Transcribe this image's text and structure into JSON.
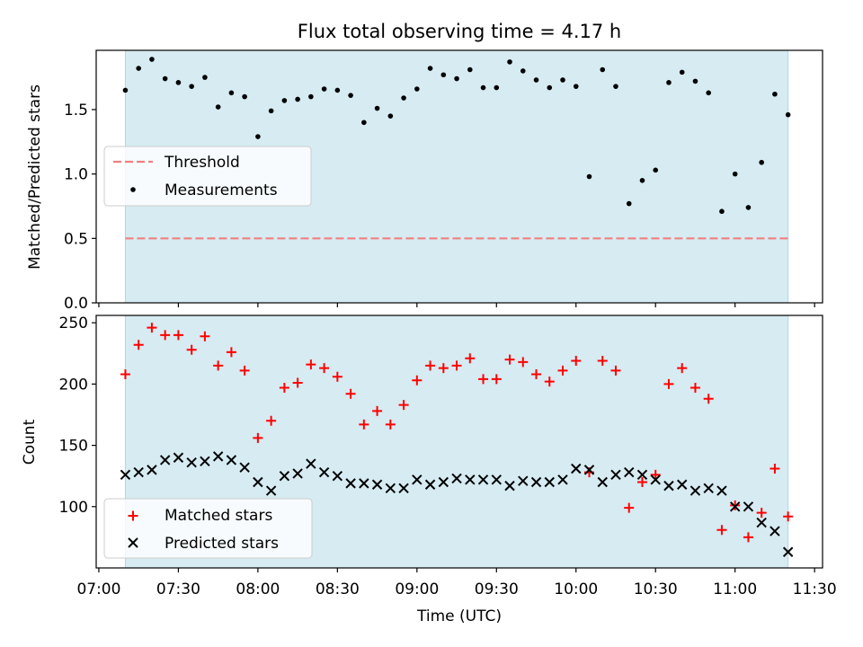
{
  "colors": {
    "background_span": "#add8e6",
    "threshold": "#f08080",
    "measurements": "#000000",
    "matched": "#ff0000",
    "predicted": "#000000"
  },
  "chart_data": [
    {
      "type": "scatter",
      "title": "Flux total observing time = 4.17 h",
      "xlabel": "",
      "ylabel": "Matched/Predicted stars",
      "xlim": [
        "06:59",
        "11:33"
      ],
      "ylim": [
        0,
        1.96
      ],
      "yticks": [
        "0.0",
        "0.5",
        "1.0",
        "1.5"
      ],
      "observing_window": [
        "07:10",
        "11:20"
      ],
      "threshold": 0.5,
      "legend": {
        "position": "center-left",
        "entries": [
          "Threshold",
          "Measurements"
        ]
      },
      "series": [
        {
          "name": "Measurements",
          "marker": "dot",
          "x": [
            "07:10",
            "07:15",
            "07:20",
            "07:25",
            "07:30",
            "07:35",
            "07:40",
            "07:45",
            "07:50",
            "07:55",
            "08:00",
            "08:05",
            "08:10",
            "08:15",
            "08:20",
            "08:25",
            "08:30",
            "08:35",
            "08:40",
            "08:45",
            "08:50",
            "08:55",
            "09:00",
            "09:05",
            "09:10",
            "09:15",
            "09:20",
            "09:25",
            "09:30",
            "09:35",
            "09:40",
            "09:45",
            "09:50",
            "09:55",
            "10:00",
            "10:05",
            "10:10",
            "10:15",
            "10:20",
            "10:25",
            "10:30",
            "10:35",
            "10:40",
            "10:45",
            "10:50",
            "10:55",
            "11:00",
            "11:05",
            "11:10",
            "11:15",
            "11:20"
          ],
          "y": [
            1.65,
            1.82,
            1.89,
            1.74,
            1.71,
            1.68,
            1.75,
            1.52,
            1.63,
            1.6,
            1.29,
            1.49,
            1.57,
            1.58,
            1.6,
            1.66,
            1.65,
            1.61,
            1.4,
            1.51,
            1.45,
            1.59,
            1.66,
            1.82,
            1.77,
            1.74,
            1.81,
            1.67,
            1.67,
            1.87,
            1.8,
            1.73,
            1.67,
            1.73,
            1.68,
            0.98,
            1.81,
            1.68,
            0.77,
            0.95,
            1.03,
            1.71,
            1.79,
            1.72,
            1.63,
            0.71,
            1.0,
            0.74,
            1.09,
            1.62,
            1.46
          ]
        }
      ]
    },
    {
      "type": "scatter",
      "title": "",
      "xlabel": "Time (UTC)",
      "ylabel": "Count",
      "xlim": [
        "06:59",
        "11:33"
      ],
      "ylim": [
        50,
        256
      ],
      "yticks": [
        "100",
        "150",
        "200",
        "250"
      ],
      "xticks": [
        "07:00",
        "07:30",
        "08:00",
        "08:30",
        "09:00",
        "09:30",
        "10:00",
        "10:30",
        "11:00",
        "11:30"
      ],
      "observing_window": [
        "07:10",
        "11:20"
      ],
      "legend": {
        "position": "lower-left",
        "entries": [
          "Matched stars",
          "Predicted stars"
        ]
      },
      "series": [
        {
          "name": "Matched stars",
          "marker": "plus",
          "x": [
            "07:10",
            "07:15",
            "07:20",
            "07:25",
            "07:30",
            "07:35",
            "07:40",
            "07:45",
            "07:50",
            "07:55",
            "08:00",
            "08:05",
            "08:10",
            "08:15",
            "08:20",
            "08:25",
            "08:30",
            "08:35",
            "08:40",
            "08:45",
            "08:50",
            "08:55",
            "09:00",
            "09:05",
            "09:10",
            "09:15",
            "09:20",
            "09:25",
            "09:30",
            "09:35",
            "09:40",
            "09:45",
            "09:50",
            "09:55",
            "10:00",
            "10:05",
            "10:10",
            "10:15",
            "10:20",
            "10:25",
            "10:30",
            "10:35",
            "10:40",
            "10:45",
            "10:50",
            "10:55",
            "11:00",
            "11:05",
            "11:10",
            "11:15",
            "11:20"
          ],
          "y": [
            208,
            232,
            246,
            240,
            240,
            228,
            239,
            215,
            226,
            211,
            156,
            170,
            197,
            201,
            216,
            213,
            206,
            192,
            167,
            178,
            167,
            183,
            203,
            215,
            213,
            215,
            221,
            204,
            204,
            220,
            218,
            208,
            202,
            211,
            219,
            128,
            219,
            211,
            99,
            120,
            126,
            200,
            213,
            197,
            188,
            81,
            101,
            75,
            95,
            131,
            92
          ]
        },
        {
          "name": "Predicted stars",
          "marker": "x",
          "x": [
            "07:10",
            "07:15",
            "07:20",
            "07:25",
            "07:30",
            "07:35",
            "07:40",
            "07:45",
            "07:50",
            "07:55",
            "08:00",
            "08:05",
            "08:10",
            "08:15",
            "08:20",
            "08:25",
            "08:30",
            "08:35",
            "08:40",
            "08:45",
            "08:50",
            "08:55",
            "09:00",
            "09:05",
            "09:10",
            "09:15",
            "09:20",
            "09:25",
            "09:30",
            "09:35",
            "09:40",
            "09:45",
            "09:50",
            "09:55",
            "10:00",
            "10:05",
            "10:10",
            "10:15",
            "10:20",
            "10:25",
            "10:30",
            "10:35",
            "10:40",
            "10:45",
            "10:50",
            "10:55",
            "11:00",
            "11:05",
            "11:10",
            "11:15",
            "11:20"
          ],
          "y": [
            126,
            128,
            130,
            138,
            140,
            136,
            137,
            141,
            138,
            132,
            120,
            113,
            125,
            127,
            135,
            128,
            125,
            119,
            119,
            118,
            115,
            115,
            122,
            118,
            120,
            123,
            122,
            122,
            122,
            117,
            121,
            120,
            120,
            122,
            131,
            130,
            120,
            126,
            128,
            126,
            122,
            117,
            118,
            113,
            115,
            113,
            100,
            100,
            87,
            80,
            63
          ]
        }
      ]
    }
  ]
}
